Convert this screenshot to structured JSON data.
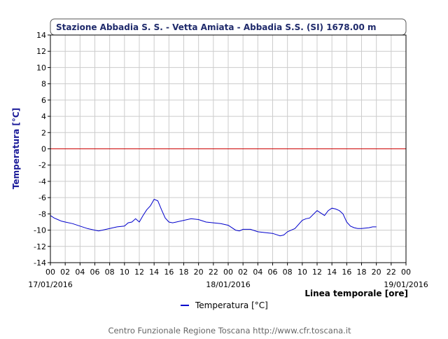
{
  "chart_data": {
    "type": "line",
    "title": "Stazione Abbadia S. S. - Vetta Amiata - Abbadia S.S. (SI) 1678.00 m",
    "ylabel": "Temperatura [°C]",
    "xlabel": "Linea temporale [ore]",
    "ylim": [
      -14,
      14
    ],
    "yticks": [
      14,
      12,
      10,
      8,
      6,
      4,
      2,
      0,
      -2,
      -4,
      -6,
      -8,
      -10,
      -12,
      -14
    ],
    "xlim_hours": [
      0,
      48
    ],
    "xticks": [
      "00",
      "02",
      "04",
      "06",
      "08",
      "10",
      "12",
      "14",
      "16",
      "18",
      "20",
      "22",
      "00",
      "02",
      "04",
      "06",
      "08",
      "10",
      "12",
      "14",
      "16",
      "18",
      "20",
      "22",
      "00"
    ],
    "date_labels": [
      "17/01/2016",
      "18/01/2016",
      "19/01/2016"
    ],
    "reference_line": {
      "y": 0,
      "color": "#cc0000"
    },
    "grid": true,
    "legend_position": "bottom-center",
    "series": [
      {
        "name": "Temperatura [°C]",
        "color": "#0000cc",
        "x_hours": [
          0,
          0.5,
          1,
          1.5,
          2,
          3,
          4,
          5,
          6,
          6.5,
          7,
          8,
          9,
          10,
          10.5,
          11,
          11.5,
          12,
          12.5,
          13,
          13.5,
          14,
          14.5,
          15,
          15.5,
          16,
          16.5,
          17,
          18,
          19,
          20,
          21,
          22,
          23,
          24,
          25,
          25.5,
          26,
          27,
          28,
          29,
          30,
          31,
          31.5,
          32,
          32.5,
          33,
          34,
          34.5,
          35,
          36,
          36.5,
          37,
          37.5,
          38,
          38.5,
          39,
          39.5,
          40,
          40.5,
          41,
          41.5,
          42,
          43,
          43.5,
          44
        ],
        "values": [
          -8.2,
          -8.5,
          -8.7,
          -8.9,
          -9.0,
          -9.2,
          -9.5,
          -9.8,
          -10.0,
          -10.1,
          -10.0,
          -9.8,
          -9.6,
          -9.5,
          -9.1,
          -9.0,
          -8.6,
          -9.0,
          -8.2,
          -7.5,
          -7.0,
          -6.2,
          -6.4,
          -7.5,
          -8.5,
          -9.0,
          -9.1,
          -9.0,
          -8.8,
          -8.6,
          -8.7,
          -9.0,
          -9.1,
          -9.2,
          -9.4,
          -10.0,
          -10.1,
          -9.9,
          -9.9,
          -10.2,
          -10.3,
          -10.4,
          -10.7,
          -10.6,
          -10.2,
          -10.0,
          -9.8,
          -8.8,
          -8.6,
          -8.5,
          -7.6,
          -7.9,
          -8.2,
          -7.6,
          -7.3,
          -7.4,
          -7.6,
          -8.0,
          -9.0,
          -9.5,
          -9.7,
          -9.8,
          -9.8,
          -9.7,
          -9.6,
          -9.6
        ]
      }
    ]
  },
  "footer": "Centro Funzionale Regione Toscana http://www.cfr.toscana.it",
  "colors": {
    "title": "#1f2a6b",
    "ylabel": "#1a1a99",
    "grid": "#cccccc",
    "line": "#0000cc",
    "zero_line": "#cc0000"
  }
}
